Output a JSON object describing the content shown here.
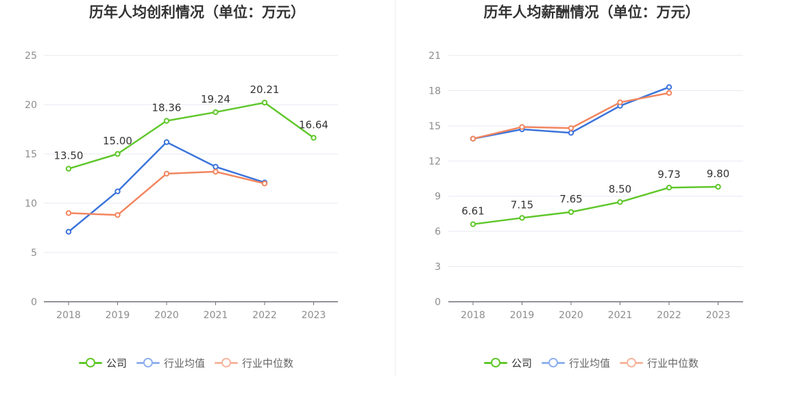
{
  "colors": {
    "company": "#5fc72a",
    "avg": "#3b74db",
    "median": "#f2855e",
    "legend_avg": "#8fb0ee",
    "legend_median": "#f7b59e",
    "grid": "#e6e9f2",
    "axis": "#6e7079",
    "label": "#333333",
    "tick": "#8c8c8c"
  },
  "legend": [
    "公司",
    "行业均值",
    "行业中位数"
  ],
  "chart_data": [
    {
      "type": "line",
      "title": "历年人均创利情况（单位：万元）",
      "categories": [
        "2018",
        "2019",
        "2020",
        "2021",
        "2022",
        "2023"
      ],
      "ylim": [
        0,
        25
      ],
      "yticks": [
        "0",
        "5",
        "10",
        "15",
        "20",
        "25"
      ],
      "grid": true,
      "legend_position": "bottom",
      "series": [
        {
          "name": "公司",
          "values": [
            13.5,
            15.0,
            18.36,
            19.24,
            20.21,
            16.64
          ],
          "labels": [
            "13.50",
            "15.00",
            "18.36",
            "19.24",
            "20.21",
            "16.64"
          ]
        },
        {
          "name": "行业均值",
          "values": [
            7.1,
            11.2,
            16.2,
            13.7,
            12.1,
            null
          ]
        },
        {
          "name": "行业中位数",
          "values": [
            9.0,
            8.8,
            13.0,
            13.2,
            12.0,
            null
          ]
        }
      ]
    },
    {
      "type": "line",
      "title": "历年人均薪酬情况（单位：万元）",
      "categories": [
        "2018",
        "2019",
        "2020",
        "2021",
        "2022",
        "2023"
      ],
      "ylim": [
        0,
        21
      ],
      "yticks": [
        "0",
        "3",
        "6",
        "9",
        "12",
        "15",
        "18",
        "21"
      ],
      "grid": true,
      "legend_position": "bottom",
      "series": [
        {
          "name": "公司",
          "values": [
            6.61,
            7.15,
            7.65,
            8.5,
            9.73,
            9.8
          ],
          "labels": [
            "6.61",
            "7.15",
            "7.65",
            "8.50",
            "9.73",
            "9.80"
          ]
        },
        {
          "name": "行业均值",
          "values": [
            13.9,
            14.7,
            14.4,
            16.7,
            18.3,
            null
          ]
        },
        {
          "name": "行业中位数",
          "values": [
            13.9,
            14.9,
            14.8,
            17.0,
            17.8,
            null
          ]
        }
      ]
    }
  ]
}
